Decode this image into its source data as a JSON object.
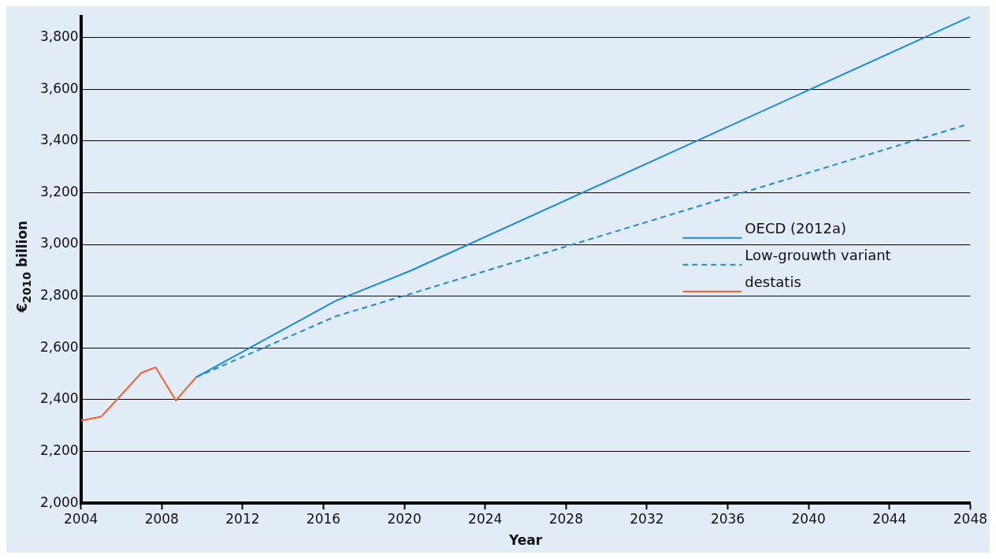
{
  "chart_data": {
    "type": "line",
    "xlabel": "Year",
    "ylabel": "€$_{2010}$ billion",
    "xlim": [
      2004,
      2048
    ],
    "xticks": [
      2004,
      2008,
      2012,
      2016,
      2020,
      2024,
      2028,
      2032,
      2036,
      2040,
      2044,
      2048
    ],
    "ylim": [
      2000,
      3880
    ],
    "yticks": [
      {
        "value": 2000,
        "label": "2,000"
      },
      {
        "value": 2200,
        "label": "2,200"
      },
      {
        "value": 2400,
        "label": "2,400"
      },
      {
        "value": 2600,
        "label": "2,600"
      },
      {
        "value": 2800,
        "label": "2,800"
      },
      {
        "value": 3000,
        "label": "3,000"
      },
      {
        "value": 3200,
        "label": "3,200"
      },
      {
        "value": 3400,
        "label": "3,400"
      },
      {
        "value": 3600,
        "label": "3,600"
      },
      {
        "value": 3800,
        "label": "3,800"
      }
    ],
    "grid": "y",
    "legend": "right",
    "marker": "none",
    "series": [
      {
        "name": "OECD (2012a)",
        "color": "#1a8ad4",
        "line_style": "solid",
        "x": [
          2009.7,
          2016.6,
          2020.3,
          2048
        ],
        "values": [
          2487,
          2782,
          2898,
          3880
        ]
      },
      {
        "name": "Low-grouwth variant",
        "color": "#1a8ad4",
        "line_style": "dashed",
        "x": [
          2009.7,
          2016.6,
          2020.3,
          2047.7
        ],
        "values": [
          2487,
          2722,
          2809,
          3460
        ]
      },
      {
        "name": "destatis",
        "color": "#f0602e",
        "line_style": "solid",
        "x": [
          2004,
          2005,
          2007,
          2007.7,
          2008.7,
          2009.7
        ],
        "values": [
          2319,
          2334,
          2504,
          2525,
          2397,
          2487
        ]
      }
    ]
  }
}
